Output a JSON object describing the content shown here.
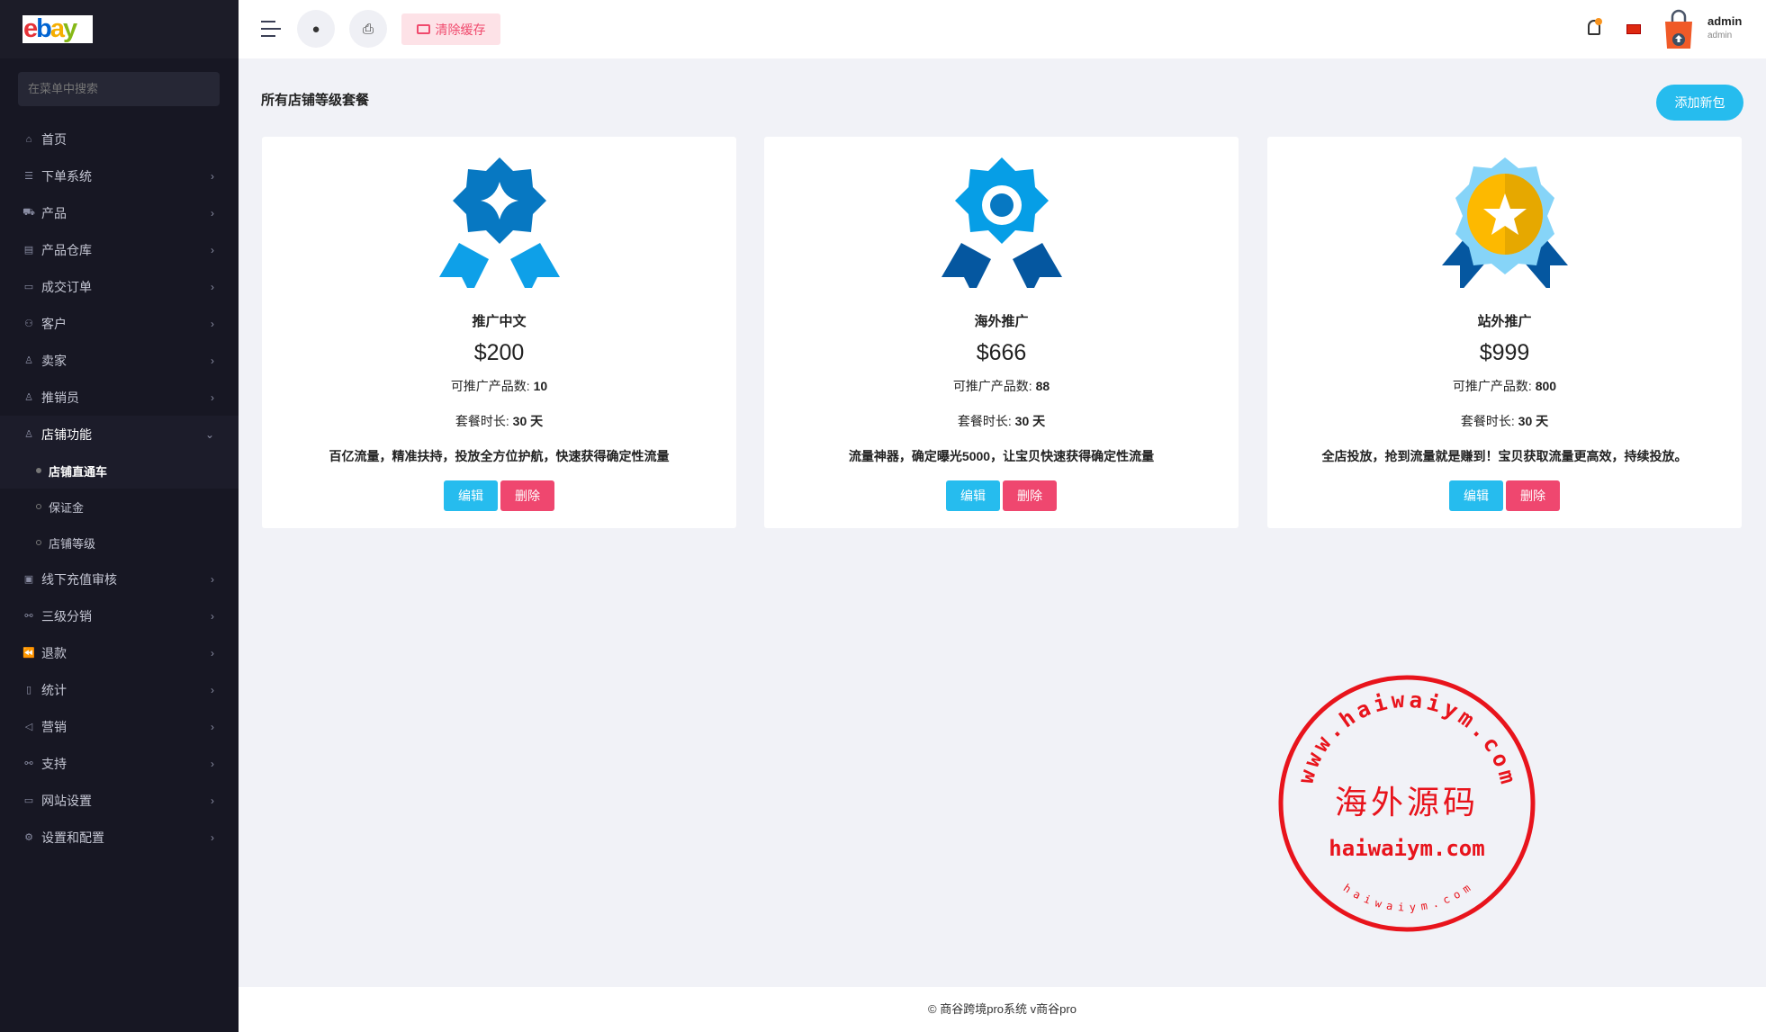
{
  "app": {
    "logo_text": "ebay"
  },
  "sidebar": {
    "search_placeholder": "在菜单中搜索",
    "items": [
      {
        "label": "首页",
        "icon": "home-icon",
        "expandable": false
      },
      {
        "label": "下单系统",
        "icon": "list-icon",
        "expandable": true
      },
      {
        "label": "产品",
        "icon": "cart-icon",
        "expandable": true
      },
      {
        "label": "产品仓库",
        "icon": "archive-icon",
        "expandable": true
      },
      {
        "label": "成交订单",
        "icon": "money-icon",
        "expandable": true
      },
      {
        "label": "客户",
        "icon": "users-icon",
        "expandable": true
      },
      {
        "label": "卖家",
        "icon": "user-icon",
        "expandable": true
      },
      {
        "label": "推销员",
        "icon": "user-icon",
        "expandable": true
      },
      {
        "label": "店铺功能",
        "icon": "user-icon",
        "expandable": true,
        "open": true,
        "children": [
          {
            "label": "店铺直通车",
            "active": true
          },
          {
            "label": "保证金"
          },
          {
            "label": "店铺等级"
          }
        ]
      },
      {
        "label": "线下充值审核",
        "icon": "card-icon",
        "expandable": true
      },
      {
        "label": "三级分销",
        "icon": "link-icon",
        "expandable": true
      },
      {
        "label": "退款",
        "icon": "rewind-icon",
        "expandable": true
      },
      {
        "label": "统计",
        "icon": "file-icon",
        "expandable": true
      },
      {
        "label": "营销",
        "icon": "megaphone-icon",
        "expandable": true
      },
      {
        "label": "支持",
        "icon": "link-icon",
        "expandable": true
      },
      {
        "label": "网站设置",
        "icon": "monitor-icon",
        "expandable": true
      },
      {
        "label": "设置和配置",
        "icon": "gear-icon",
        "expandable": true
      }
    ]
  },
  "header": {
    "clear_cache": "清除缓存",
    "user_name": "admin",
    "user_role": "admin",
    "notification_dot_color": "#f7931e"
  },
  "main": {
    "title": "所有店铺等级套餐",
    "add_button": "添加新包",
    "count_label": "可推广产品数:",
    "duration_label": "套餐时长:",
    "edit_label": "编辑",
    "delete_label": "删除",
    "packages": [
      {
        "name": "推广中文",
        "price": "$200",
        "count": "10",
        "duration": "30 天",
        "desc": "百亿流量，精准扶持，投放全方位护航，快速获得确定性流量",
        "badge": "diamond-ribbon-icon"
      },
      {
        "name": "海外推广",
        "price": "$666",
        "count": "88",
        "duration": "30 天",
        "desc": "流量神器，确定曝光5000，让宝贝快速获得确定性流量",
        "badge": "ring-ribbon-icon"
      },
      {
        "name": "站外推广",
        "price": "$999",
        "count": "800",
        "duration": "30 天",
        "desc": "全店投放，抢到流量就是赚到！宝贝获取流量更高效，持续投放。",
        "badge": "star-medal-icon"
      }
    ]
  },
  "footer": {
    "text": "© 商谷跨境pro系统 v商谷pro"
  },
  "watermark": {
    "ring_text": "www.haiwaiym.com",
    "center_text": "海外源码",
    "url_text": "haiwaiym.com",
    "small_text": "haiwaiym.com",
    "color": "#e8141c"
  }
}
